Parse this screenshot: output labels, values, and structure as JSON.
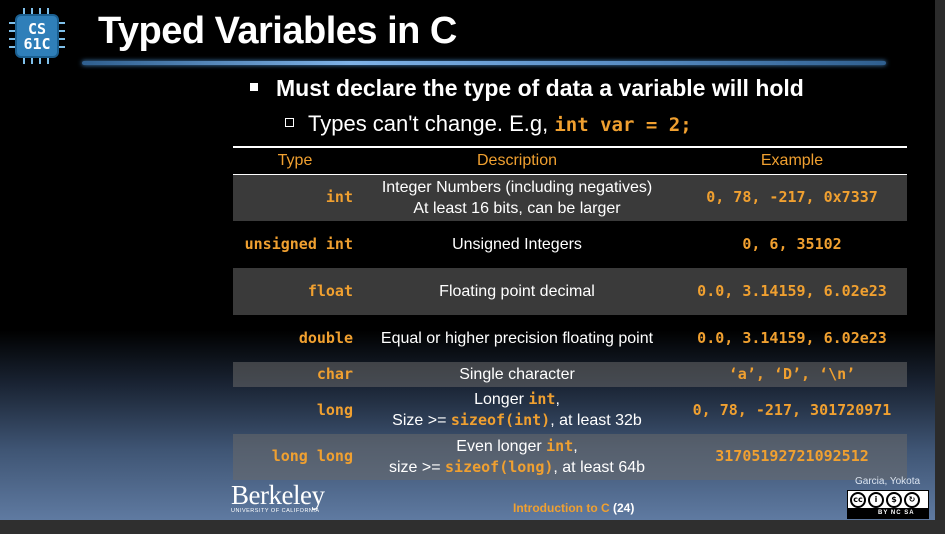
{
  "logo": {
    "text_line1": "CS",
    "text_line2": "61C"
  },
  "title": "Typed Variables in C",
  "bullet1": "Must declare the type of data a variable will hold",
  "bullet2": {
    "prefix": "Types can't change. E.g, ",
    "code": "int var = 2;"
  },
  "table": {
    "headers": {
      "type": "Type",
      "description": "Description",
      "example": "Example"
    },
    "rows": [
      {
        "type": "int",
        "desc_line1": "Integer Numbers (including negatives)",
        "desc_line2": "At least 16 bits, can be larger",
        "example": "0, 78, -217, 0x7337",
        "shaded": true
      },
      {
        "type": "unsigned int",
        "desc": "Unsigned Integers",
        "example": "0, 6, 35102",
        "shaded": false
      },
      {
        "type": "float",
        "desc": "Floating point decimal",
        "example": "0.0, 3.14159, 6.02e23",
        "shaded": true
      },
      {
        "type": "double",
        "desc": "Equal or higher precision floating point",
        "example": "0.0, 3.14159, 6.02e23",
        "shaded": false
      },
      {
        "type": "char",
        "desc": "Single character",
        "example": "‘a’, ‘D’, ‘\\n’",
        "shaded": true
      },
      {
        "type": "long",
        "desc_line1_pre": "Longer ",
        "desc_line1_code": "int",
        "desc_line1_post": ",",
        "desc_line2_pre": "Size >= ",
        "desc_line2_code": "sizeof(int)",
        "desc_line2_post": ", at least 32b",
        "example": "0, 78, -217, 301720971",
        "shaded": false
      },
      {
        "type": "long long",
        "desc_line1_pre": "Even longer ",
        "desc_line1_code": "int",
        "desc_line1_post": ",",
        "desc_line2_pre": "size >= ",
        "desc_line2_code": "sizeof(long)",
        "desc_line2_post": ", at least 64b",
        "example": "31705192721092512",
        "shaded": true
      }
    ]
  },
  "footer": {
    "university_name": "Berkeley",
    "university_sub": "UNIVERSITY OF CALIFORNIA",
    "course_text": "Introduction to C",
    "page": "(24)",
    "authors": "Garcia, Yokota",
    "license_label": "BY  NC  SA"
  },
  "colors": {
    "accent": "#f0a030",
    "title": "#ffffff",
    "logo": "#2f7fb9"
  }
}
